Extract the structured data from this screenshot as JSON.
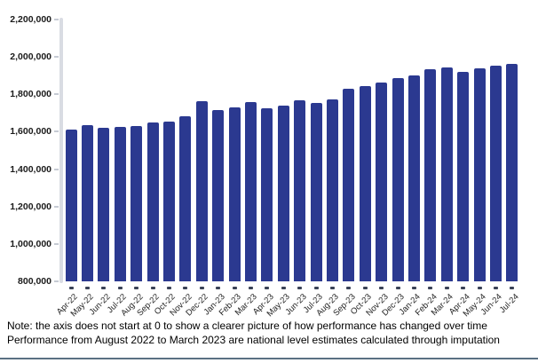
{
  "chart_data": {
    "type": "bar",
    "title": "",
    "xlabel": "",
    "ylabel": "",
    "legend": "none",
    "grid": "off",
    "ylim": [
      800000,
      2200000
    ],
    "y_ticks": [
      {
        "value": 800000,
        "label": "800,000"
      },
      {
        "value": 1000000,
        "label": "1,000,000"
      },
      {
        "value": 1200000,
        "label": "1,200,000"
      },
      {
        "value": 1400000,
        "label": "1,400,000"
      },
      {
        "value": 1600000,
        "label": "1,600,000"
      },
      {
        "value": 1800000,
        "label": "1,800,000"
      },
      {
        "value": 2000000,
        "label": "2,000,000"
      },
      {
        "value": 2200000,
        "label": "2,200,000"
      }
    ],
    "categories": [
      "Apr-22",
      "May-22",
      "Jun-22",
      "Jul-22",
      "Aug-22",
      "Sep-22",
      "Oct-22",
      "Nov-22",
      "Dec-22",
      "Jan-23",
      "Feb-23",
      "Mar-23",
      "Apr-23",
      "May-23",
      "Jun-23",
      "Jul-23",
      "Aug-23",
      "Sep-23",
      "Oct-23",
      "Nov-23",
      "Dec-23",
      "Jan-24",
      "Feb-24",
      "Mar-24",
      "Apr-24",
      "May-24",
      "Jun-24",
      "Jul-24"
    ],
    "values": [
      1610000,
      1635000,
      1620000,
      1625000,
      1630000,
      1650000,
      1655000,
      1685000,
      1765000,
      1715000,
      1730000,
      1760000,
      1725000,
      1740000,
      1770000,
      1755000,
      1775000,
      1830000,
      1845000,
      1865000,
      1885000,
      1900000,
      1935000,
      1945000,
      1920000,
      1940000,
      1955000,
      1965000
    ]
  },
  "colors": {
    "bar": "#2B3990",
    "axis_line": "#D9DCE3",
    "y_tick_mark": "#C6CBD4",
    "x_tick_mark": "#3A4256",
    "axis_text": "#1A1A1A",
    "bottom_border": "#5A7083",
    "background": "#FFFFFF"
  },
  "note": {
    "line1": "Note: the axis does not start at 0 to show a clearer picture of how performance has changed over time",
    "line2": "Performance from August 2022 to March 2023 are national level estimates calculated through imputation"
  }
}
